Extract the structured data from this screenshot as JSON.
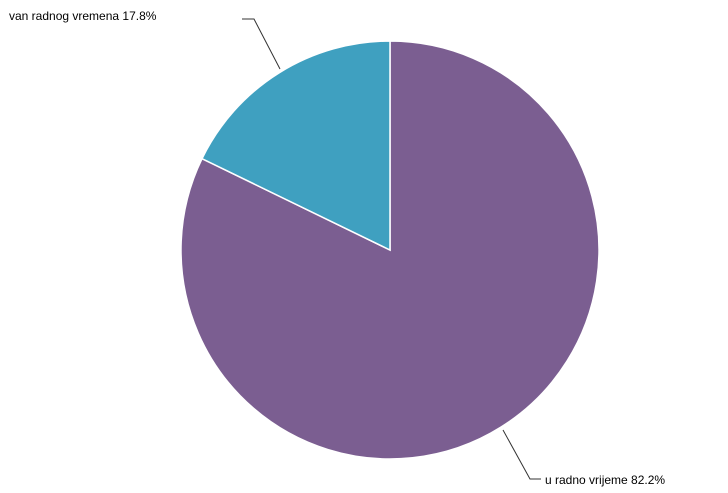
{
  "chart_data": {
    "type": "pie",
    "title": "",
    "start_angle_deg": 0,
    "direction": "clockwise",
    "slices": [
      {
        "label": "u radno vrijeme 82.2%",
        "name": "u radno vrijeme",
        "value": 82.2,
        "color": "#7b5e91"
      },
      {
        "label": "van radnog vremena 17.8%",
        "name": "van radnog vremena",
        "value": 17.8,
        "color": "#3fa0c0"
      }
    ]
  }
}
